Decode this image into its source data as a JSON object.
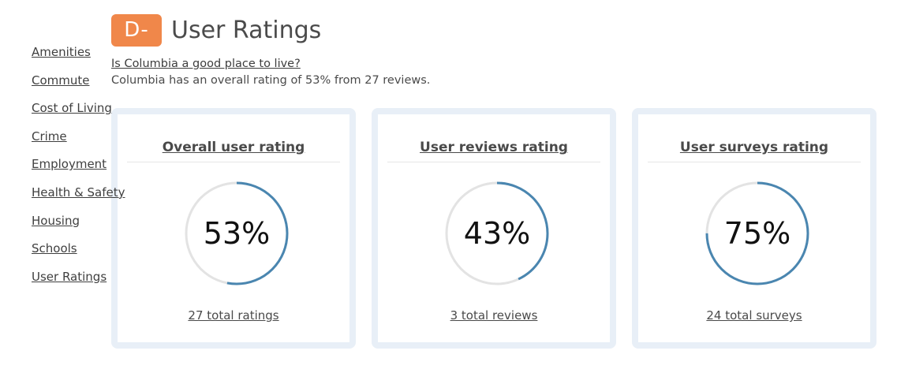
{
  "header": {
    "grade": "D-",
    "title": "User Ratings",
    "question": "Is Columbia a good place to live?",
    "summary": "Columbia has an overall rating of 53% from 27 reviews."
  },
  "nav": {
    "items": [
      {
        "label": "Amenities"
      },
      {
        "label": "Commute"
      },
      {
        "label": "Cost of Living"
      },
      {
        "label": "Crime"
      },
      {
        "label": "Employment"
      },
      {
        "label": "Health & Safety"
      },
      {
        "label": "Housing"
      },
      {
        "label": "Schools"
      },
      {
        "label": "User Ratings"
      }
    ]
  },
  "cards": [
    {
      "title": "Overall user rating",
      "value": "53%",
      "percent": 53,
      "footer": "27 total ratings"
    },
    {
      "title": "User reviews rating",
      "value": "43%",
      "percent": 43,
      "footer": "3 total reviews"
    },
    {
      "title": "User surveys rating",
      "value": "75%",
      "percent": 75,
      "footer": "24 total surveys"
    }
  ],
  "colors": {
    "badge": "#f0874a",
    "gauge_fill": "#4a86b0",
    "gauge_track": "#e3e3e3",
    "card_border": "#e8eff7"
  }
}
